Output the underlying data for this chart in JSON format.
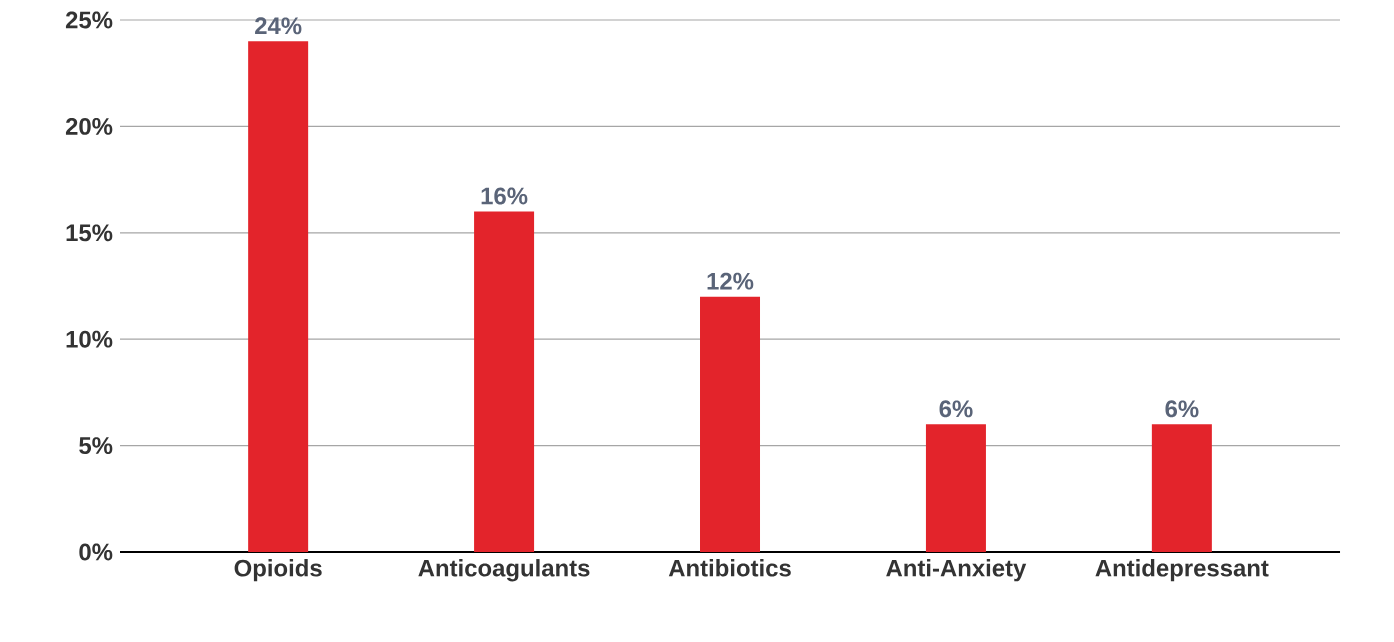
{
  "chart_data": {
    "type": "bar",
    "categories": [
      "Opioids",
      "Anticoagulants",
      "Antibiotics",
      "Anti-Anxiety",
      "Antidepressant"
    ],
    "values": [
      24,
      16,
      12,
      6,
      6
    ],
    "value_labels": [
      "24%",
      "16%",
      "12%",
      "6%",
      "6%"
    ],
    "color": "#e3242b",
    "ylim": [
      0,
      25
    ],
    "yticks": [
      {
        "value": 0,
        "label": "0%"
      },
      {
        "value": 5,
        "label": "5%"
      },
      {
        "value": 10,
        "label": "10%"
      },
      {
        "value": 15,
        "label": "15%"
      },
      {
        "value": 20,
        "label": "20%"
      },
      {
        "value": 25,
        "label": "25%"
      }
    ],
    "grid": "y"
  }
}
